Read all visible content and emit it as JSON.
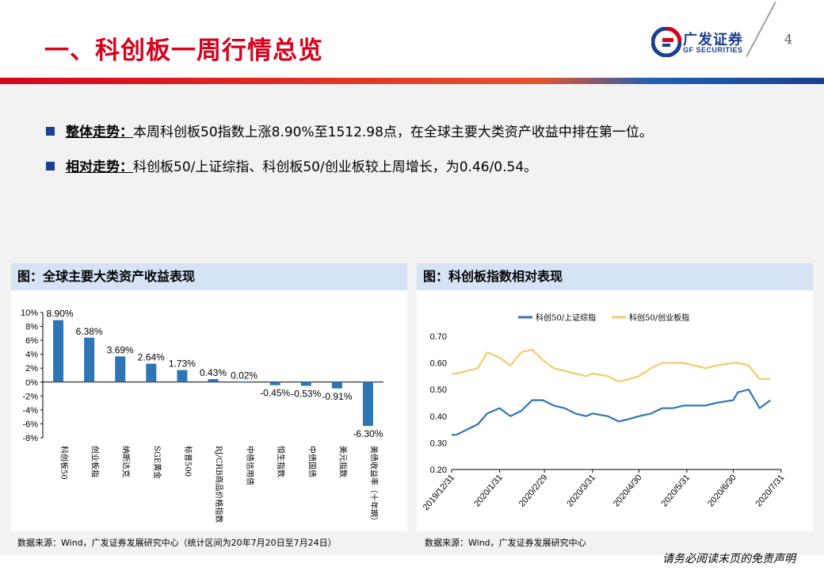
{
  "header": {
    "title": "一、科创板一周行情总览",
    "logo_cn": "广发证券",
    "logo_en": "GF SECURITIES",
    "page_number": "4"
  },
  "bullets": [
    {
      "label": "整体走势：",
      "text": "本周科创板50指数上涨8.90%至1512.98点，在全球主要大类资产收益中排在第一位。"
    },
    {
      "label": "相对走势：",
      "text": "科创板50/上证综指、科创板50/创业板较上周增长，为0.46/0.54。"
    }
  ],
  "left_panel": {
    "title": "图：全球主要大类资产收益表现",
    "source": "数据来源：Wind，广发证券发展研究中心（统计区间为20年7月20日至7月24日）"
  },
  "right_panel": {
    "title": "图：科创板指数相对表现",
    "source": "数据来源：Wind，广发证券发展研究中心"
  },
  "disclaimer": "请务必阅读末页的免责声明",
  "colors": {
    "title_red": "#d6001c",
    "bar_blue": "#2e75b6",
    "series_blue": "#2e75b6",
    "series_yellow": "#f5c96b"
  },
  "chart_data": [
    {
      "type": "bar",
      "categories": [
        "科创板50",
        "创业板指",
        "纳斯达克",
        "SGE黄金",
        "标普500",
        "RJ/CRB商品价格指数",
        "中债信用债",
        "恒生指数",
        "中债国债",
        "美元指数",
        "美债收益率（十年期）"
      ],
      "values": [
        8.9,
        6.38,
        3.69,
        2.64,
        1.73,
        0.43,
        0.02,
        -0.45,
        -0.53,
        -0.91,
        -6.3
      ],
      "data_labels": [
        "8.90%",
        "6.38%",
        "3.69%",
        "2.64%",
        "1.73%",
        "0.43%",
        "0.02%",
        "-0.45%",
        "-0.53%",
        "-0.91%",
        "-6.30%"
      ],
      "yticks": [
        "10%",
        "8%",
        "6%",
        "4%",
        "2%",
        "0%",
        "-2%",
        "-4%",
        "-6%",
        "-8%"
      ],
      "ylim": [
        -8,
        10
      ],
      "grid": false
    },
    {
      "type": "line",
      "legend": [
        "科创50/上证综指",
        "科创50/创业板指"
      ],
      "legend_position": "top",
      "yticks": [
        "0.70",
        "0.60",
        "0.50",
        "0.40",
        "0.30",
        "0.20"
      ],
      "ylim": [
        0.2,
        0.7
      ],
      "xticks": [
        "2019/12/31",
        "2020/1/31",
        "2020/2/29",
        "2020/3/31",
        "2020/4/30",
        "2020/5/31",
        "2020/6/30",
        "2020/7/31"
      ],
      "x": [
        "2019/12/31",
        "2020/1/3",
        "2020/1/10",
        "2020/1/17",
        "2020/1/23",
        "2020/1/31",
        "2020/2/7",
        "2020/2/14",
        "2020/2/21",
        "2020/2/28",
        "2020/3/6",
        "2020/3/13",
        "2020/3/20",
        "2020/3/27",
        "2020/3/31",
        "2020/4/10",
        "2020/4/17",
        "2020/4/24",
        "2020/4/30",
        "2020/5/8",
        "2020/5/15",
        "2020/5/22",
        "2020/5/29",
        "2020/6/5",
        "2020/6/12",
        "2020/6/19",
        "2020/6/30",
        "2020/7/3",
        "2020/7/10",
        "2020/7/17",
        "2020/7/24"
      ],
      "series": [
        {
          "name": "科创50/上证综指",
          "values": [
            0.33,
            0.33,
            0.35,
            0.37,
            0.41,
            0.43,
            0.4,
            0.42,
            0.46,
            0.46,
            0.44,
            0.43,
            0.41,
            0.4,
            0.41,
            0.4,
            0.38,
            0.39,
            0.4,
            0.41,
            0.43,
            0.43,
            0.44,
            0.44,
            0.44,
            0.45,
            0.46,
            0.49,
            0.5,
            0.43,
            0.46
          ]
        },
        {
          "name": "科创50/创业板指",
          "values": [
            0.56,
            0.56,
            0.57,
            0.58,
            0.64,
            0.62,
            0.59,
            0.64,
            0.65,
            0.61,
            0.58,
            0.57,
            0.56,
            0.55,
            0.56,
            0.55,
            0.53,
            0.54,
            0.55,
            0.58,
            0.6,
            0.6,
            0.6,
            0.59,
            0.58,
            0.59,
            0.6,
            0.6,
            0.59,
            0.54,
            0.54
          ]
        }
      ],
      "grid": false
    }
  ]
}
